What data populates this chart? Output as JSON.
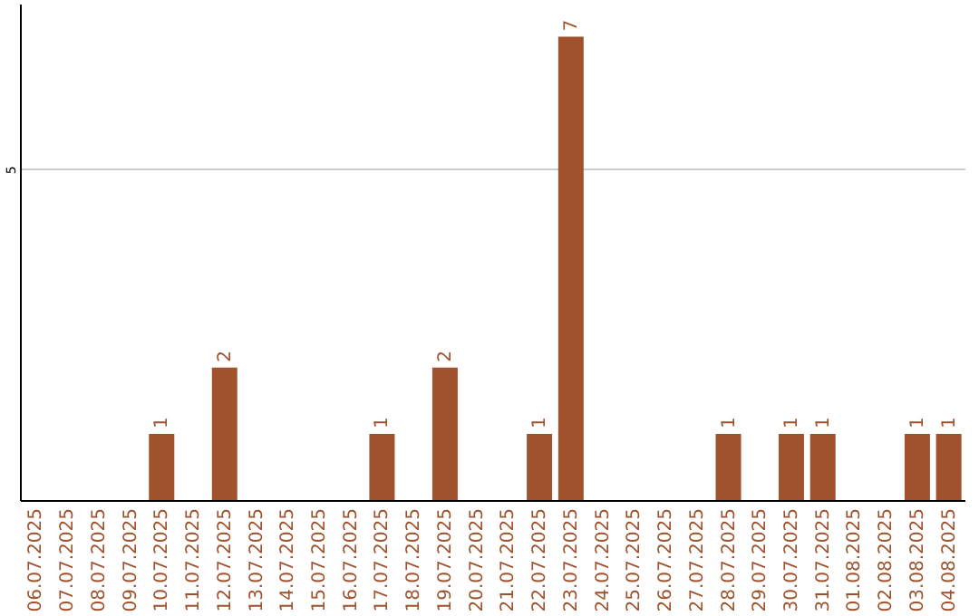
{
  "chart_data": {
    "type": "bar",
    "categories": [
      "06.07.2025",
      "07.07.2025",
      "08.07.2025",
      "09.07.2025",
      "10.07.2025",
      "11.07.2025",
      "12.07.2025",
      "13.07.2025",
      "14.07.2025",
      "15.07.2025",
      "16.07.2025",
      "17.07.2025",
      "18.07.2025",
      "19.07.2025",
      "20.07.2025",
      "21.07.2025",
      "22.07.2025",
      "23.07.2025",
      "24.07.2025",
      "25.07.2025",
      "26.07.2025",
      "27.07.2025",
      "28.07.2025",
      "29.07.2025",
      "30.07.2025",
      "31.07.2025",
      "01.08.2025",
      "02.08.2025",
      "03.08.2025",
      "04.08.2025"
    ],
    "values": [
      0,
      0,
      0,
      0,
      1,
      0,
      2,
      0,
      0,
      0,
      0,
      1,
      0,
      2,
      0,
      0,
      1,
      7,
      0,
      0,
      0,
      0,
      1,
      0,
      1,
      1,
      0,
      0,
      1,
      1
    ],
    "value_labels": [
      null,
      null,
      null,
      null,
      "1",
      null,
      "2",
      null,
      null,
      null,
      null,
      "1",
      null,
      "2",
      null,
      null,
      "1",
      "7",
      null,
      null,
      null,
      null,
      "1",
      null,
      "1",
      "1",
      null,
      null,
      "1",
      "1"
    ],
    "color": "#a0522d",
    "ylim": [
      0,
      7.5
    ],
    "yticks": [
      5
    ],
    "grid": "y"
  }
}
